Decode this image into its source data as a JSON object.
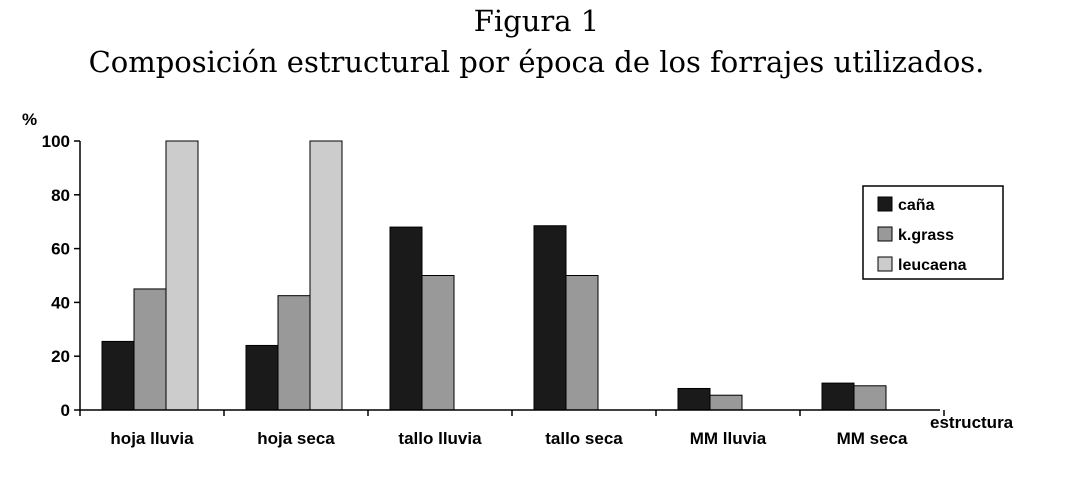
{
  "chart_data": {
    "type": "bar",
    "title": "Figura 1",
    "subtitle": "Composición estructural por época de los forrajes utilizados.",
    "ylabel": "%",
    "xlabel": "estructura",
    "ylim": [
      0,
      100
    ],
    "yticks": [
      0,
      20,
      40,
      60,
      80,
      100
    ],
    "categories": [
      "hoja lluvia",
      "hoja seca",
      "tallo lluvia",
      "tallo seca",
      "MM lluvia",
      "MM seca"
    ],
    "series": [
      {
        "name": "caña",
        "color": "#1a1a1a",
        "values": [
          25.5,
          24,
          68,
          68.5,
          8,
          10
        ]
      },
      {
        "name": "k.grass",
        "color": "#999999",
        "values": [
          45,
          42.5,
          50,
          50,
          5.5,
          9
        ]
      },
      {
        "name": "leucaena",
        "color": "#cccccc",
        "values": [
          100,
          100,
          0,
          0,
          0,
          0
        ]
      }
    ],
    "legend_position": "right",
    "grid": false
  }
}
